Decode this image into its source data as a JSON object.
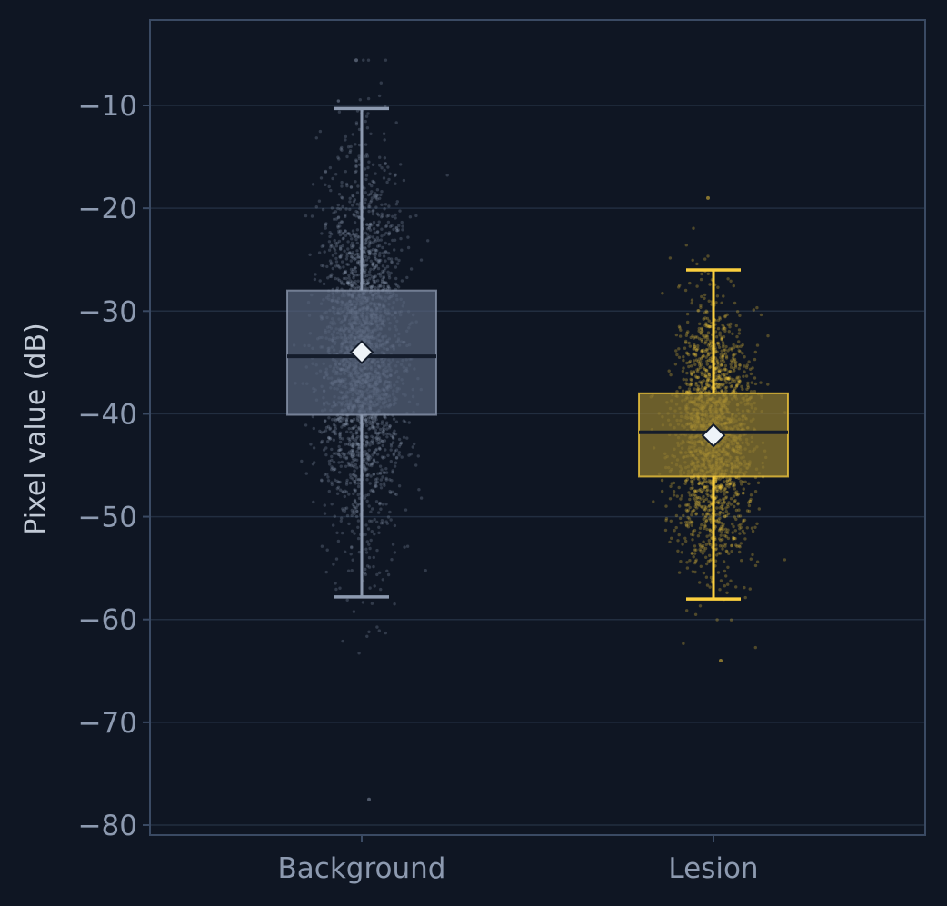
{
  "chart_data": {
    "type": "box",
    "title": "",
    "xlabel": "",
    "ylabel": "Pixel value (dB)",
    "ylim": [
      -81,
      -2
    ],
    "yticks": [
      -10,
      -20,
      -30,
      -40,
      -50,
      -60,
      -70,
      -80
    ],
    "ytick_labels": [
      "−10",
      "−20",
      "−30",
      "−40",
      "−50",
      "−60",
      "−70",
      "−80"
    ],
    "grid": "horizontal",
    "categories": [
      "Background",
      "Lesion"
    ],
    "series": [
      {
        "category": "Background",
        "color": "#8d9ab0",
        "box_fill": "#56627a",
        "whisker_low": -57.8,
        "q1": -40.1,
        "median": -34.4,
        "mean": -34.0,
        "q3": -28.0,
        "whisker_high": -10.3,
        "points_min": -77.5,
        "points_max": -5.6,
        "points_mean": -34.0,
        "points_sd": 9.0
      },
      {
        "category": "Lesion",
        "color": "#fbcf3e",
        "box_fill": "#8f7a2f",
        "whisker_low": -58.0,
        "q1": -46.1,
        "median": -41.8,
        "mean": -42.1,
        "q3": -38.0,
        "whisker_high": -26.0,
        "points_min": -64.0,
        "points_max": -19.0,
        "points_mean": -42.1,
        "points_sd": 6.1
      }
    ],
    "colors": {
      "background": "#0f1623",
      "frame": "#3a4a63",
      "grid": "#222e40",
      "median_line": "#141c2b",
      "mean_marker_fill": "#eef3f8",
      "mean_marker_stroke": "#141c2b"
    }
  }
}
